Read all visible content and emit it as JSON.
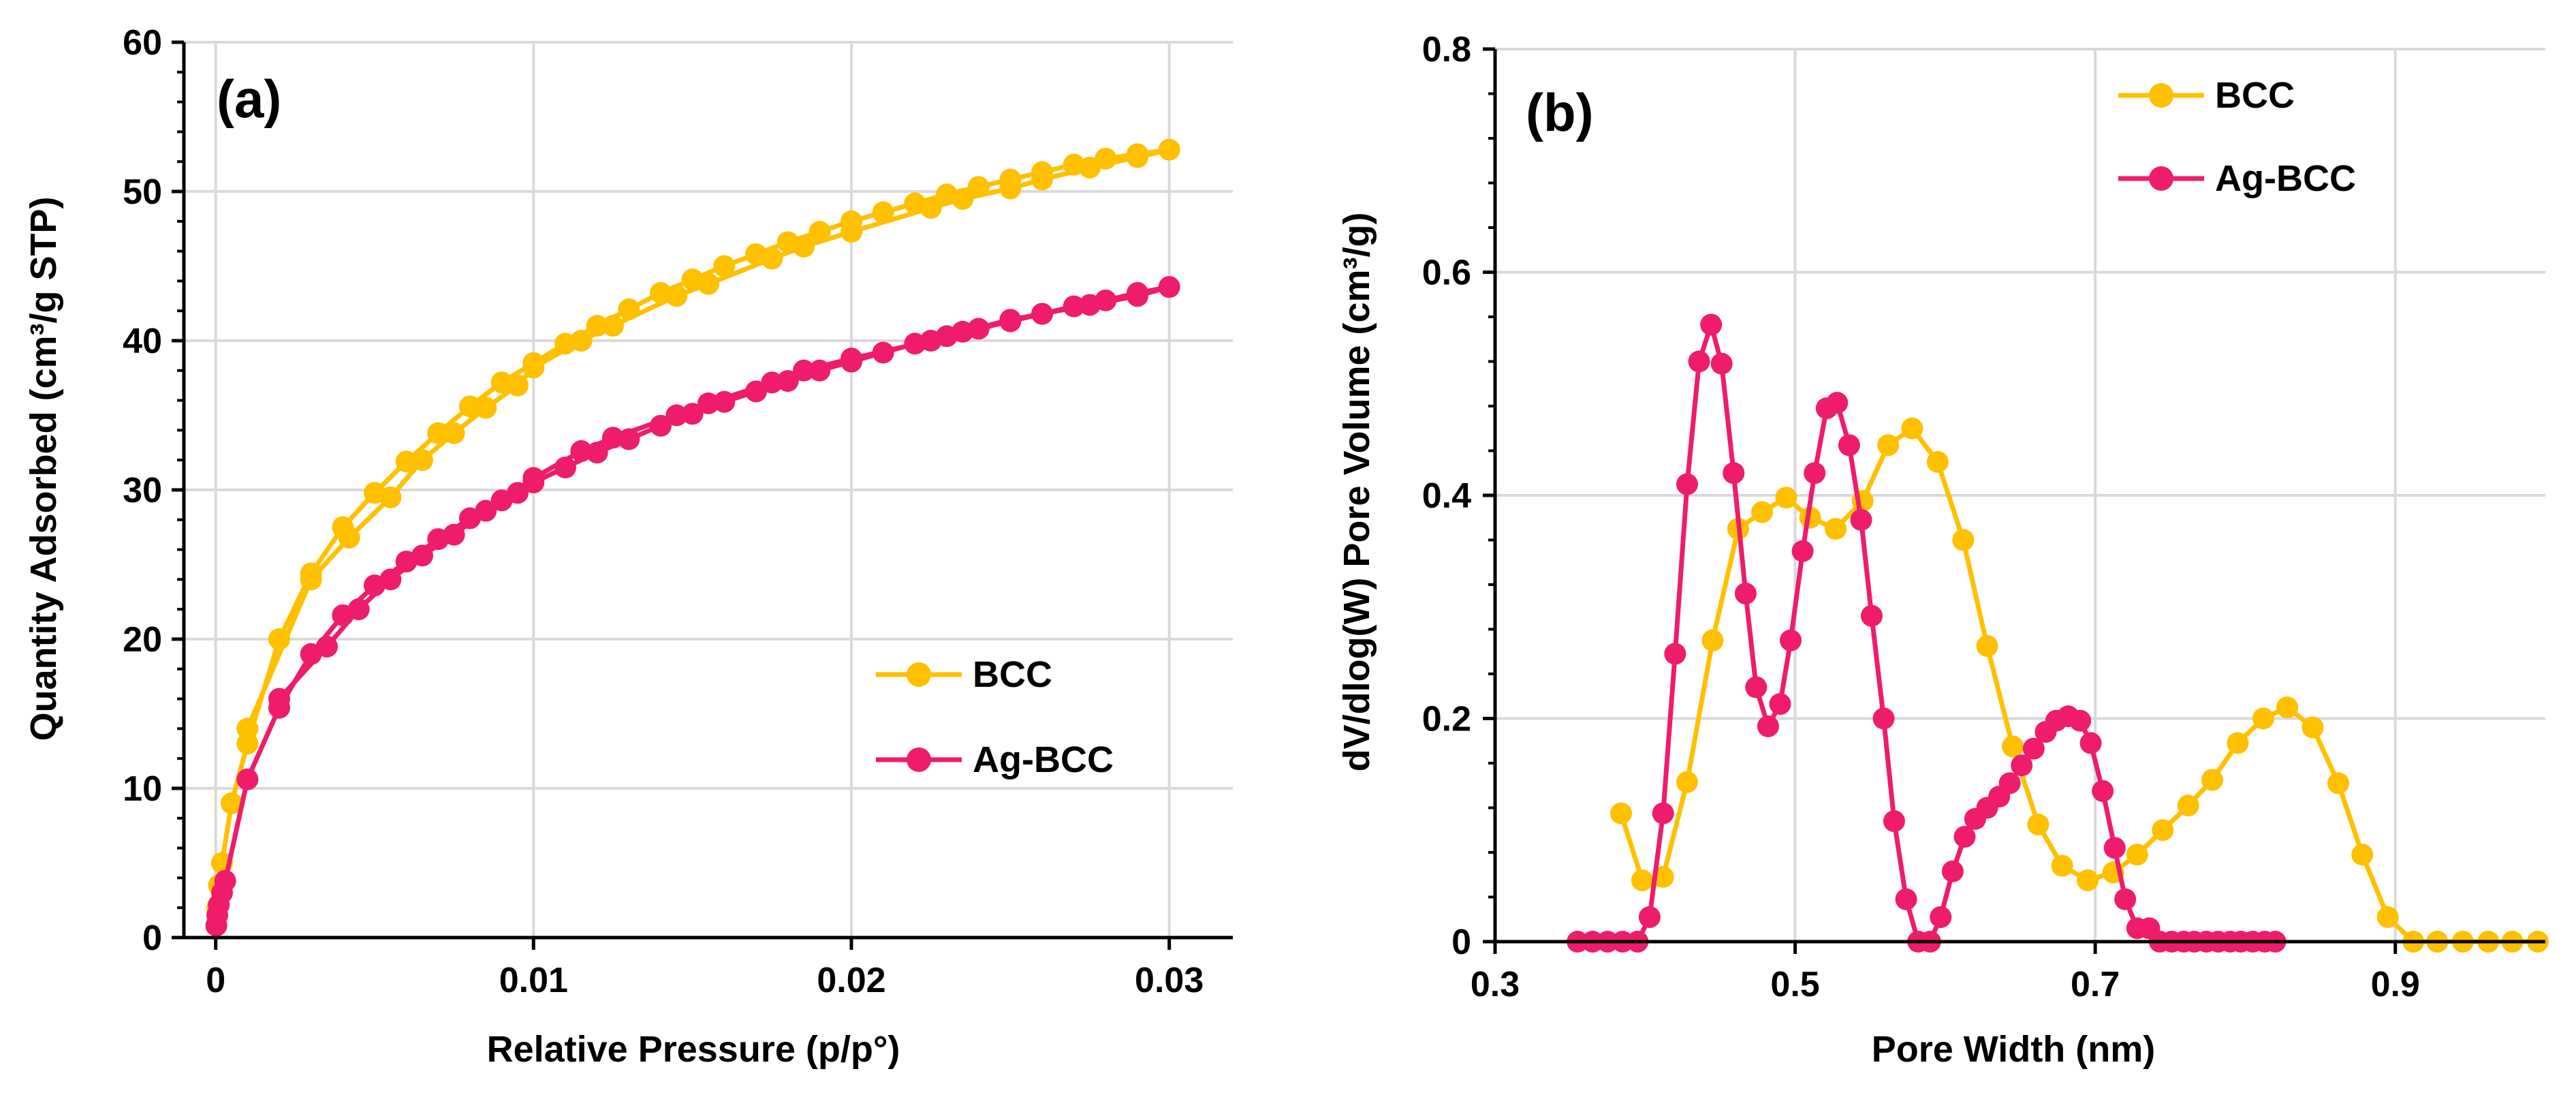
{
  "colors": {
    "bcc": "#FFC000",
    "agbcc": "#EE1C6A",
    "grid": "#D9D9D9",
    "axis": "#000000"
  },
  "chart_data": [
    {
      "type": "line",
      "panel_label": "(a)",
      "xlabel": "Relative Pressure (p/p°)",
      "ylabel": "Quantity Adsorbed (cm³/g STP)",
      "xlim": [
        -0.001,
        0.032
      ],
      "ylim": [
        0,
        60
      ],
      "xticks": [
        0,
        0.01,
        0.02,
        0.03
      ],
      "xtick_labels": [
        "0",
        "0.01",
        "0.02",
        "0.03"
      ],
      "yticks": [
        0,
        10,
        20,
        30,
        40,
        50,
        60
      ],
      "ytick_labels": [
        "0",
        "10",
        "20",
        "30",
        "40",
        "50",
        "60"
      ],
      "grid": true,
      "legend_position": "center-right",
      "series": [
        {
          "name": "BCC",
          "color_key": "bcc",
          "x": [
            2e-05,
            5e-05,
            0.0001,
            0.0002,
            0.0005,
            0.001,
            0.002,
            0.003,
            0.004,
            0.005,
            0.006,
            0.007,
            0.008,
            0.009,
            0.01,
            0.011,
            0.012,
            0.013,
            0.014,
            0.015,
            0.016,
            0.017,
            0.018,
            0.019,
            0.02,
            0.021,
            0.022,
            0.023,
            0.024,
            0.025,
            0.026,
            0.027,
            0.028,
            0.029,
            0.03,
            0.029,
            0.0275,
            0.026,
            0.025,
            0.0235,
            0.0225,
            0.02,
            0.0185,
            0.0175,
            0.0155,
            0.0145,
            0.0125,
            0.0115,
            0.01,
            0.0095,
            0.0085,
            0.0075,
            0.0065,
            0.0055,
            0.0042,
            0.003,
            0.001
          ],
          "y": [
            0.8,
            2.0,
            3.5,
            5.0,
            9.0,
            13.0,
            20.0,
            24.4,
            27.5,
            29.8,
            31.9,
            33.8,
            35.6,
            37.2,
            38.5,
            39.8,
            41.0,
            42.1,
            43.2,
            44.1,
            45.0,
            45.8,
            46.6,
            47.3,
            48.0,
            48.6,
            49.2,
            49.8,
            50.3,
            50.8,
            51.3,
            51.8,
            52.2,
            52.5,
            52.8,
            52.3,
            51.6,
            50.8,
            50.2,
            49.5,
            48.9,
            47.3,
            46.3,
            45.5,
            43.8,
            43.0,
            41.0,
            40.0,
            38.2,
            37.0,
            35.5,
            33.8,
            32.0,
            29.5,
            26.8,
            24.0,
            14.0
          ]
        },
        {
          "name": "Ag-BCC",
          "color_key": "agbcc",
          "x": [
            2e-05,
            5e-05,
            0.0001,
            0.0002,
            0.0003,
            0.001,
            0.002,
            0.003,
            0.004,
            0.005,
            0.006,
            0.007,
            0.008,
            0.009,
            0.01,
            0.011,
            0.012,
            0.013,
            0.014,
            0.015,
            0.016,
            0.017,
            0.018,
            0.019,
            0.02,
            0.021,
            0.022,
            0.023,
            0.024,
            0.025,
            0.026,
            0.027,
            0.028,
            0.029,
            0.03,
            0.029,
            0.0275,
            0.026,
            0.025,
            0.0235,
            0.0225,
            0.02,
            0.0185,
            0.0175,
            0.0155,
            0.0145,
            0.0125,
            0.0115,
            0.01,
            0.0095,
            0.0085,
            0.0075,
            0.0065,
            0.0055,
            0.0045,
            0.0035,
            0.002
          ],
          "y": [
            0.8,
            1.5,
            2.2,
            3.0,
            3.8,
            10.6,
            15.4,
            19.0,
            21.6,
            23.6,
            25.2,
            26.7,
            28.1,
            29.3,
            30.5,
            31.5,
            32.5,
            33.4,
            34.3,
            35.1,
            35.9,
            36.6,
            37.3,
            38.0,
            38.6,
            39.2,
            39.8,
            40.3,
            40.8,
            41.3,
            41.8,
            42.3,
            42.7,
            43.2,
            43.6,
            43.0,
            42.4,
            41.8,
            41.4,
            40.6,
            40.0,
            38.8,
            38.0,
            37.2,
            35.8,
            35.0,
            33.5,
            32.6,
            30.8,
            29.8,
            28.6,
            27.0,
            25.6,
            24.0,
            22.0,
            19.5,
            16.0
          ]
        }
      ]
    },
    {
      "type": "line",
      "panel_label": "(b)",
      "xlabel": "Pore Width (nm)",
      "ylabel": "dV/dlog(W) Pore Volume (cm³/g)",
      "xlim": [
        0.3,
        1.0
      ],
      "ylim": [
        0,
        0.8
      ],
      "xticks": [
        0.3,
        0.5,
        0.7,
        0.9
      ],
      "xtick_labels": [
        "0.3",
        "0.5",
        "0.7",
        "0.9"
      ],
      "yticks": [
        0,
        0.2,
        0.4,
        0.6,
        0.8
      ],
      "ytick_labels": [
        "0",
        "0.2",
        "0.4",
        "0.6",
        "0.8"
      ],
      "grid": true,
      "legend_position": "top-center",
      "series": [
        {
          "name": "BCC",
          "color_key": "bcc",
          "x": [
            0.384,
            0.398,
            0.412,
            0.428,
            0.445,
            0.462,
            0.478,
            0.494,
            0.51,
            0.527,
            0.545,
            0.562,
            0.578,
            0.595,
            0.612,
            0.628,
            0.645,
            0.662,
            0.678,
            0.695,
            0.712,
            0.728,
            0.745,
            0.762,
            0.778,
            0.795,
            0.812,
            0.828,
            0.845,
            0.862,
            0.878,
            0.895,
            0.912,
            0.928,
            0.945,
            0.962,
            0.978,
            0.995
          ],
          "y": [
            0.115,
            0.055,
            0.058,
            0.143,
            0.27,
            0.37,
            0.385,
            0.398,
            0.38,
            0.37,
            0.395,
            0.445,
            0.46,
            0.43,
            0.36,
            0.265,
            0.175,
            0.105,
            0.068,
            0.055,
            0.062,
            0.078,
            0.1,
            0.122,
            0.145,
            0.178,
            0.2,
            0.21,
            0.192,
            0.142,
            0.078,
            0.022,
            0.0,
            0.0,
            0.0,
            0.0,
            0.0,
            0.0
          ]
        },
        {
          "name": "Ag-BCC",
          "color_key": "agbcc",
          "x": [
            0.355,
            0.365,
            0.375,
            0.385,
            0.395,
            0.403,
            0.412,
            0.42,
            0.428,
            0.436,
            0.444,
            0.451,
            0.459,
            0.467,
            0.474,
            0.482,
            0.49,
            0.497,
            0.505,
            0.513,
            0.521,
            0.528,
            0.536,
            0.544,
            0.551,
            0.559,
            0.566,
            0.574,
            0.582,
            0.59,
            0.597,
            0.605,
            0.613,
            0.62,
            0.628,
            0.636,
            0.643,
            0.651,
            0.659,
            0.667,
            0.674,
            0.682,
            0.69,
            0.697,
            0.705,
            0.713,
            0.72,
            0.728,
            0.736,
            0.743,
            0.751,
            0.759,
            0.766,
            0.774,
            0.782,
            0.79,
            0.797,
            0.805,
            0.813,
            0.82
          ],
          "y": [
            0.0,
            0.0,
            0.0,
            0.0,
            0.0,
            0.022,
            0.115,
            0.258,
            0.41,
            0.52,
            0.553,
            0.518,
            0.42,
            0.312,
            0.228,
            0.193,
            0.213,
            0.27,
            0.35,
            0.42,
            0.478,
            0.483,
            0.445,
            0.378,
            0.292,
            0.2,
            0.108,
            0.038,
            0.0,
            0.0,
            0.022,
            0.063,
            0.094,
            0.11,
            0.12,
            0.13,
            0.142,
            0.158,
            0.173,
            0.188,
            0.198,
            0.202,
            0.198,
            0.178,
            0.135,
            0.084,
            0.038,
            0.012,
            0.012,
            0.0,
            0.0,
            0.0,
            0.0,
            0.0,
            0.0,
            0.0,
            0.0,
            0.0,
            0.0,
            0.0
          ]
        }
      ]
    }
  ]
}
